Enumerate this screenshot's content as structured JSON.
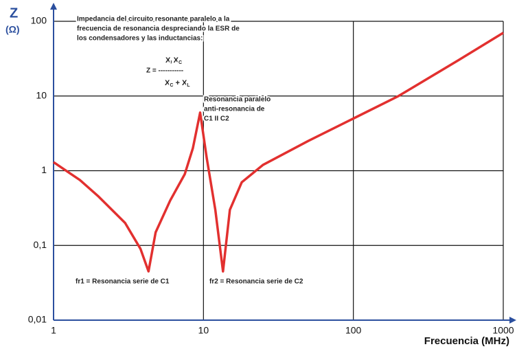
{
  "chart_data": {
    "type": "line",
    "y_label": "Z",
    "y_unit": "(Ω)",
    "x_label": "Frecuencia  (MHz)",
    "log_x": true,
    "log_y": true,
    "grid": true,
    "xlim": [
      1,
      1000
    ],
    "ylim": [
      0.01,
      100
    ],
    "xticks": [
      1,
      10,
      100,
      1000
    ],
    "yticks": [
      {
        "value": 0.01,
        "label": "0,01"
      },
      {
        "value": 0.1,
        "label": "0,1"
      },
      1,
      10,
      100
    ],
    "series": [
      {
        "color": "#e2302f",
        "x": [
          1,
          1.5,
          2,
          3,
          3.8,
          4.3,
          4.8,
          6,
          7.5,
          8.5,
          9.5,
          10.5,
          12,
          13.5,
          15,
          18,
          25,
          50,
          100,
          200,
          500,
          1000
        ],
        "values": [
          1.3,
          0.75,
          0.45,
          0.2,
          0.09,
          0.045,
          0.15,
          0.4,
          0.9,
          2,
          6,
          1.5,
          0.3,
          0.045,
          0.3,
          0.7,
          1.2,
          2.5,
          5,
          10,
          30,
          70
        ]
      }
    ],
    "annotations": {
      "description": [
        "Impedancia del circuito resonante paralelo a la",
        "frecuencia de resonancia despreciando la ESR de",
        "los condensadores y las inductancias:"
      ],
      "formula": {
        "lhs": "Z = -----------",
        "numerator": [
          {
            "base": "X",
            "sub": "L"
          },
          {
            "base": "X",
            "sub": "C"
          }
        ],
        "denominator": [
          {
            "base": "X",
            "sub": "C"
          },
          {
            "base": " + X",
            "sub": "L"
          }
        ]
      },
      "parallel": [
        "Resonancia paralelo",
        "anti-resonancia de",
        "C1 II C2"
      ],
      "fr1": "fr1 = Resonancia serie de C1",
      "fr2": "fr2 = Resonancia serie de C2"
    }
  }
}
